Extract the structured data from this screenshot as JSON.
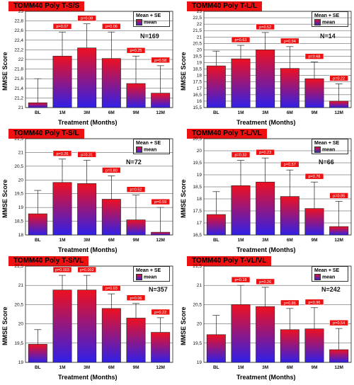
{
  "legend": {
    "line1": "Mean + SE",
    "line2": "mean"
  },
  "colors": {
    "bar_top": "#ee1020",
    "bar_bottom": "#3020e8",
    "title_bg": "#ee1111",
    "pbox": "#ee1111"
  },
  "chart_data": [
    {
      "type": "bar",
      "title": "TOMM40 Poly T-S/S",
      "n_label": "N=169",
      "xlabel": "Treatment (Months)",
      "ylabel": "MMSE Score",
      "categories": [
        "BL",
        "1M",
        "3M",
        "6M",
        "9M",
        "12M"
      ],
      "values": [
        21.1,
        22.07,
        22.24,
        22.02,
        21.5,
        21.3
      ],
      "se": [
        0.5,
        0.5,
        0.5,
        0.55,
        0.57,
        0.57
      ],
      "p_values": [
        "",
        "p=0.07",
        "p=0.08",
        "p=0.06",
        "p=0.25",
        "p=0.58"
      ],
      "ylim": [
        21,
        23
      ],
      "yticks": [
        "21",
        "21,2",
        "21,4",
        "21,6",
        "21,8",
        "22",
        "22,2",
        "22,4",
        "22,6",
        "22,8",
        "23"
      ],
      "series": [
        {
          "name": "mean",
          "values": [
            21.1,
            22.07,
            22.24,
            22.02,
            21.5,
            21.3
          ]
        }
      ]
    },
    {
      "type": "bar",
      "title": "TOMM40 Poly T-L/L",
      "n_label": "N=14",
      "xlabel": "Treatment (Months)",
      "ylabel": "MMSE Score",
      "categories": [
        "BL",
        "1M",
        "3M",
        "6M",
        "9M",
        "12M"
      ],
      "values": [
        18.75,
        19.3,
        20.0,
        18.55,
        17.75,
        16.0
      ],
      "se": [
        1.15,
        1.05,
        1.35,
        1.7,
        1.3,
        1.35
      ],
      "p_values": [
        "",
        "p=0.63",
        "p=0.52",
        "p=0.94",
        "p=0.68",
        "p=0.22"
      ],
      "ylim": [
        15.5,
        23
      ],
      "yticks": [
        "15,5",
        "16",
        "16,5",
        "17",
        "17,5",
        "18",
        "18,5",
        "19",
        "19,5",
        "20",
        "20,5",
        "21",
        "21,5",
        "22",
        "22,5",
        "23"
      ],
      "series": [
        {
          "name": "mean",
          "values": [
            18.75,
            19.3,
            20.0,
            18.55,
            17.75,
            16.0
          ]
        }
      ]
    },
    {
      "type": "bar",
      "title": "TOMM40 Poly T-S/L",
      "n_label": "N=72",
      "xlabel": "Treatment (Months)",
      "ylabel": "MMSE Score",
      "categories": [
        "BL",
        "1M",
        "3M",
        "6M",
        "9M",
        "12M"
      ],
      "values": [
        18.77,
        19.91,
        19.87,
        19.3,
        18.55,
        18.1
      ],
      "se": [
        0.85,
        0.85,
        0.85,
        0.85,
        0.9,
        0.9
      ],
      "p_values": [
        "",
        "p=0.26",
        "p=0.31",
        "p=0.80",
        "p=0.52",
        "p=0.59"
      ],
      "ylim": [
        18,
        21.5
      ],
      "yticks": [
        "18",
        "18,5",
        "19",
        "19,5",
        "20",
        "20,5",
        "21",
        "21,5"
      ],
      "series": [
        {
          "name": "mean",
          "values": [
            18.77,
            19.91,
            19.87,
            19.3,
            18.55,
            18.1
          ]
        }
      ]
    },
    {
      "type": "bar",
      "title": "TOMM40 Poly T-L/VL",
      "n_label": "N=66",
      "xlabel": "Treatment (Months)",
      "ylabel": "MMSE Score",
      "categories": [
        "BL",
        "1M",
        "3M",
        "6M",
        "9M",
        "12M"
      ],
      "values": [
        17.35,
        18.55,
        18.7,
        18.1,
        17.6,
        16.85
      ],
      "se": [
        0.95,
        1.05,
        1.0,
        1.1,
        1.1,
        1.05
      ],
      "p_values": [
        "",
        "p=0.33",
        "p=0.23",
        "p=0.57",
        "p=0.76",
        "p=0.85"
      ],
      "ylim": [
        16.5,
        20.5
      ],
      "yticks": [
        "16,5",
        "17",
        "17,5",
        "18",
        "18,5",
        "19",
        "19,5",
        "20",
        "20,5"
      ],
      "series": [
        {
          "name": "mean",
          "values": [
            17.35,
            18.55,
            18.7,
            18.1,
            17.6,
            16.85
          ]
        }
      ]
    },
    {
      "type": "bar",
      "title": "TOMM40 Poly T-S/VL",
      "n_label": "N=357",
      "xlabel": "Treatment (Months)",
      "ylabel": "MMSE Score",
      "categories": [
        "BL",
        "1M",
        "3M",
        "6M",
        "9M",
        "12M"
      ],
      "values": [
        19.47,
        20.88,
        20.88,
        20.4,
        20.15,
        19.78
      ],
      "se": [
        0.38,
        0.38,
        0.38,
        0.38,
        0.38,
        0.38
      ],
      "p_values": [
        "",
        "p=0.003",
        "p=0.002",
        "p=0.03",
        "p=0.06",
        "p=0.22"
      ],
      "ylim": [
        19,
        21.5
      ],
      "yticks": [
        "19",
        "19,5",
        "20",
        "20,5",
        "21",
        "21,5"
      ],
      "series": [
        {
          "name": "mean",
          "values": [
            19.47,
            20.88,
            20.88,
            20.4,
            20.15,
            19.78
          ]
        }
      ]
    },
    {
      "type": "bar",
      "title": "TOMM40 Poly T-VL/VL",
      "n_label": "N=242",
      "xlabel": "Treatment (Months)",
      "ylabel": "MMSE Score",
      "categories": [
        "BL",
        "1M",
        "3M",
        "6M",
        "9M",
        "12M"
      ],
      "values": [
        19.72,
        20.5,
        20.45,
        19.85,
        19.87,
        19.33
      ],
      "se": [
        0.5,
        0.5,
        0.5,
        0.55,
        0.55,
        0.55
      ],
      "p_values": [
        "",
        "p=0.18",
        "p=0.26",
        "p=0.86",
        "p=0.96",
        "p=0.54"
      ],
      "ylim": [
        19,
        21.5
      ],
      "yticks": [
        "19",
        "19,5",
        "20",
        "20,5",
        "21",
        "21,5"
      ],
      "series": [
        {
          "name": "mean",
          "values": [
            19.72,
            20.5,
            20.45,
            19.85,
            19.87,
            19.33
          ]
        }
      ]
    }
  ]
}
